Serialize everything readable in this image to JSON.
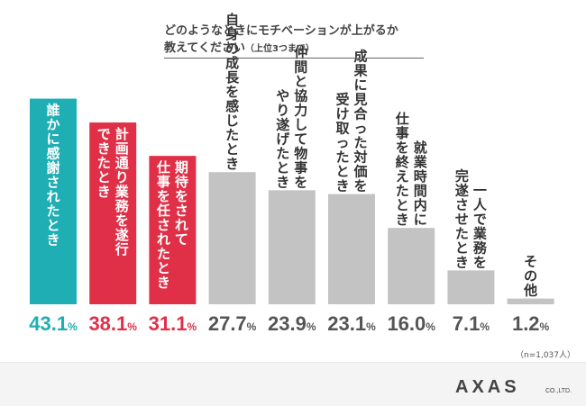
{
  "question_line1": "どのようなときにモチベーションが上がるか",
  "question_line2": "教えてください",
  "question_note": "（上位3つまで）",
  "sample_note": "（n=1,037人）",
  "logo_text": "AXAS",
  "logo_sub": "CO.,LTD.",
  "colors": {
    "teal": "#1eaeb3",
    "red": "#e03048",
    "gray": "#c3c3c3",
    "red_text": "#e03048",
    "gray_text": "#555555",
    "logo_red": "#e0303c",
    "logo_dark": "#444444"
  },
  "chart_data": {
    "type": "bar",
    "unit": "%",
    "ylim": [
      0,
      45
    ],
    "categories": [
      [
        "誰かに感謝されたとき"
      ],
      [
        "計画通り業務を遂行",
        "できたとき"
      ],
      [
        "期待をされて",
        "仕事を任されたとき"
      ],
      [
        "自身の成長を感じたとき"
      ],
      [
        "仲間と協力して物事を",
        "やり遂げたとき"
      ],
      [
        "成果に見合った対価を",
        "受け取ったとき"
      ],
      [
        "就業時間内に",
        "仕事を終えたとき"
      ],
      [
        "一人で業務を",
        "完遂させたとき"
      ],
      [
        "その他"
      ]
    ],
    "values": [
      43.1,
      38.1,
      31.1,
      27.7,
      23.9,
      23.1,
      16.0,
      7.1,
      1.2
    ],
    "value_labels": [
      "43.1",
      "38.1",
      "31.1",
      "27.7",
      "23.9",
      "23.1",
      "16.0",
      "7.1",
      "1.2"
    ],
    "bar_colors": [
      "teal",
      "red",
      "red",
      "gray",
      "gray",
      "gray",
      "gray",
      "gray",
      "gray"
    ]
  }
}
